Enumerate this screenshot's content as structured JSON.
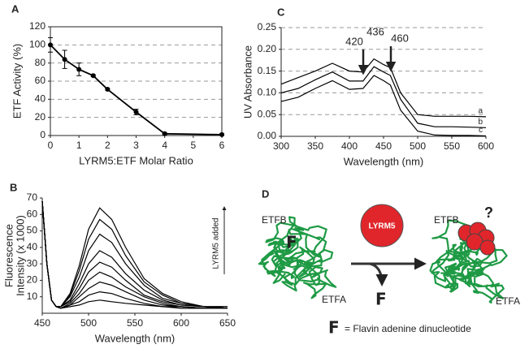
{
  "panels": [
    "A",
    "B",
    "C",
    "D"
  ],
  "chart_data": [
    {
      "type": "line",
      "xlabel": "LYRM5:ETF Molar Ratio",
      "ylabel": "ETF Activity (%)",
      "x": [
        0,
        0.5,
        1,
        1.5,
        2,
        3,
        4,
        6
      ],
      "series": [
        {
          "color": "#000000",
          "values": [
            100,
            84,
            73,
            66,
            51,
            26,
            2,
            1
          ],
          "errors": [
            8,
            10,
            7,
            1,
            1,
            3,
            1,
            1
          ]
        }
      ],
      "xlim": [
        0,
        6
      ],
      "xticks": [
        0,
        1,
        2,
        3,
        4,
        5,
        6
      ],
      "ylim": [
        0,
        120
      ],
      "yticks": [
        0,
        20,
        40,
        60,
        80,
        100,
        120
      ],
      "grid": true,
      "markers": true
    },
    {
      "type": "line",
      "xlabel": "Wavelength (nm)",
      "ylabel": [
        "Fluorescence",
        "Intensity (x 1000)"
      ],
      "annotation": "LYRM5 added",
      "x": [
        450,
        455,
        460,
        465,
        470,
        480,
        490,
        500,
        512,
        525,
        540,
        560,
        580,
        600,
        625,
        650
      ],
      "series": [
        {
          "color": "#000000",
          "values": [
            68,
            30,
            8,
            4,
            4,
            12,
            29,
            51,
            64,
            57,
            40,
            21,
            12,
            7,
            4,
            4
          ]
        },
        {
          "color": "#000000",
          "values": [
            68,
            30,
            8,
            4,
            4,
            11,
            26,
            45,
            57,
            51,
            35,
            19,
            11,
            6,
            4,
            4
          ]
        },
        {
          "color": "#000000",
          "values": [
            68,
            30,
            8,
            4,
            4,
            10,
            22,
            38,
            48,
            43,
            30,
            17,
            9,
            6,
            4,
            3
          ]
        },
        {
          "color": "#000000",
          "values": [
            68,
            30,
            8,
            4,
            4,
            8,
            18,
            30,
            38,
            34,
            24,
            14,
            8,
            5,
            4,
            3
          ]
        },
        {
          "color": "#000000",
          "values": [
            68,
            30,
            8,
            4,
            4,
            7,
            15,
            25,
            31,
            28,
            20,
            11,
            7,
            5,
            4,
            3
          ]
        },
        {
          "color": "#000000",
          "values": [
            68,
            30,
            8,
            4,
            3,
            6,
            12,
            20,
            25,
            22,
            16,
            10,
            6,
            4,
            3,
            3
          ]
        },
        {
          "color": "#000000",
          "values": [
            68,
            30,
            8,
            4,
            3,
            5,
            10,
            15,
            19,
            17,
            13,
            8,
            5,
            4,
            3,
            3
          ]
        },
        {
          "color": "#000000",
          "values": [
            68,
            30,
            8,
            4,
            3,
            5,
            7,
            11,
            13,
            12,
            9,
            6,
            4,
            4,
            3,
            3
          ]
        },
        {
          "color": "#000000",
          "values": [
            68,
            30,
            8,
            4,
            3,
            4,
            5,
            7,
            8,
            7,
            6,
            5,
            4,
            3,
            3,
            3
          ]
        }
      ],
      "xlim": [
        450,
        650
      ],
      "xticks": [
        450,
        500,
        550,
        600,
        650
      ],
      "ylim": [
        0,
        70
      ],
      "yticks": [
        10,
        20,
        30,
        40,
        50,
        60,
        70
      ],
      "grid": false,
      "markers": false
    },
    {
      "type": "line",
      "xlabel": "Wavelength (nm)",
      "ylabel": "UV Absorbance",
      "annotations": [
        "420",
        "436",
        "460"
      ],
      "x": [
        300,
        325,
        350,
        375,
        400,
        420,
        436,
        450,
        460,
        475,
        500,
        525,
        550,
        575,
        600
      ],
      "series": [
        {
          "name": "a",
          "color": "#000000",
          "values": [
            0.12,
            0.135,
            0.15,
            0.168,
            0.15,
            0.148,
            0.178,
            0.165,
            0.158,
            0.1,
            0.05,
            0.046,
            0.046,
            0.046,
            0.045
          ]
        },
        {
          "name": "b",
          "color": "#000000",
          "values": [
            0.1,
            0.11,
            0.13,
            0.148,
            0.127,
            0.127,
            0.16,
            0.148,
            0.14,
            0.085,
            0.03,
            0.022,
            0.022,
            0.021,
            0.02
          ]
        },
        {
          "name": "c",
          "color": "#000000",
          "values": [
            0.08,
            0.09,
            0.11,
            0.128,
            0.108,
            0.11,
            0.14,
            0.128,
            0.118,
            0.06,
            0.012,
            0.003,
            0.002,
            0.002,
            0.001
          ]
        }
      ],
      "xlim": [
        300,
        600
      ],
      "xticks": [
        300,
        350,
        400,
        450,
        500,
        550,
        600
      ],
      "ylim": [
        0,
        0.25
      ],
      "yticks": [
        {
          "value": 0,
          "label": "0.00"
        },
        {
          "value": 0.05,
          "label": "0.05"
        },
        {
          "value": 0.1,
          "label": "0.10"
        },
        {
          "value": 0.15,
          "label": "0.15"
        },
        {
          "value": 0.2,
          "label": "0.20"
        },
        {
          "value": 0.25,
          "label": "0.25"
        }
      ],
      "grid": true,
      "markers": false
    }
  ],
  "diagram": {
    "left_top": "ETFB",
    "left_bottom": "ETFA",
    "left_cofactor": "F",
    "protein": "LYRM5",
    "released": "F",
    "right_top": "ETFB",
    "right_bottom": "ETFA",
    "question": "?",
    "key_symbol": "F",
    "key_text": "= Flavin adenine dinucleotide"
  }
}
